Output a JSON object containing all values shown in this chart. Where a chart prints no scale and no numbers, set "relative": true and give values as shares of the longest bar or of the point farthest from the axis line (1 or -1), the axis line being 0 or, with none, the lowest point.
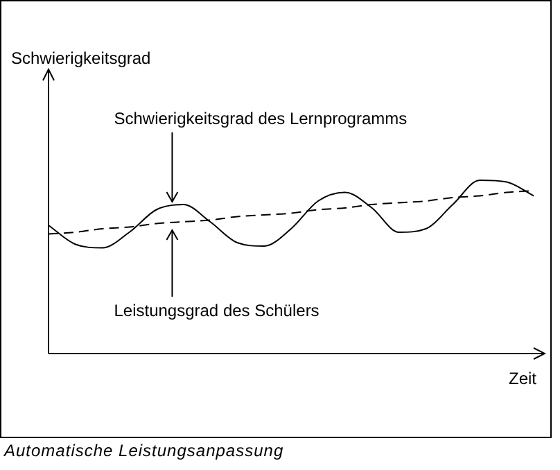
{
  "chart_data": {
    "type": "line",
    "relative": true,
    "xlabel": "Zeit",
    "tick_labels": false,
    "legend": false,
    "marker": "none",
    "annotations": [
      "Schwierigkeitsgrad",
      "Automatische Leistungsanpassung"
    ],
    "categories": [
      null,
      null,
      null,
      null,
      null,
      null,
      null,
      null,
      null,
      null,
      null,
      null,
      null,
      null,
      null,
      null,
      null,
      null,
      null
    ],
    "series": [
      {
        "name": "Schwierigkeitsgrad des Lernprogramms",
        "color": "#000000",
        "line_style": "solid",
        "values": [
          0.74,
          0.63,
          0.61,
          0.7,
          0.83,
          0.86,
          0.76,
          0.64,
          0.62,
          0.72,
          0.88,
          0.93,
          0.84,
          0.7,
          0.72,
          0.86,
          1.0,
          0.99,
          0.91
        ]
      },
      {
        "name": "Leistungsgrad des Schülers",
        "color": "#000000",
        "line_style": "dashed",
        "values": [
          0.69,
          0.7,
          0.72,
          0.73,
          0.75,
          0.76,
          0.77,
          0.79,
          0.8,
          0.81,
          0.83,
          0.84,
          0.86,
          0.87,
          0.88,
          0.9,
          0.91,
          0.93,
          0.94
        ]
      }
    ]
  }
}
